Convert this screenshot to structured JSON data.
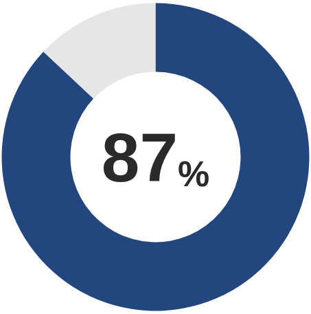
{
  "chart_data": {
    "type": "pie",
    "values": [
      87,
      13
    ],
    "value_labels": [
      "87%",
      null
    ],
    "data_labels": true,
    "colors": [
      "#24467f",
      "#e6e6e6"
    ]
  }
}
